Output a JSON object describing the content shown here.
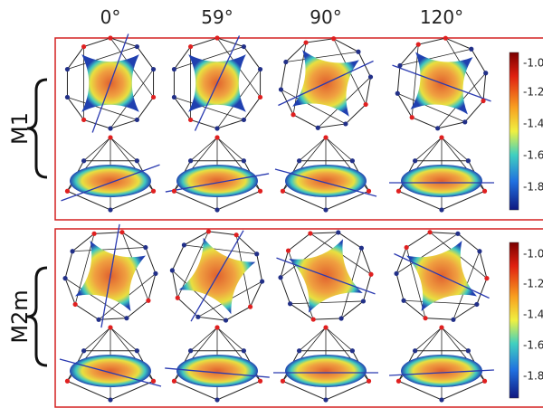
{
  "column_labels": [
    "0°",
    "59°",
    "90°",
    "120°"
  ],
  "rows": [
    {
      "label": "M1",
      "colorbar_ticks": [
        "-1.0",
        "-1.2",
        "-1.4",
        "-1.6",
        "-1.8"
      ]
    },
    {
      "label": "M2m",
      "colorbar_ticks": [
        "-1.0",
        "-1.2",
        "-1.4",
        "-1.6",
        "-1.8"
      ]
    }
  ]
}
